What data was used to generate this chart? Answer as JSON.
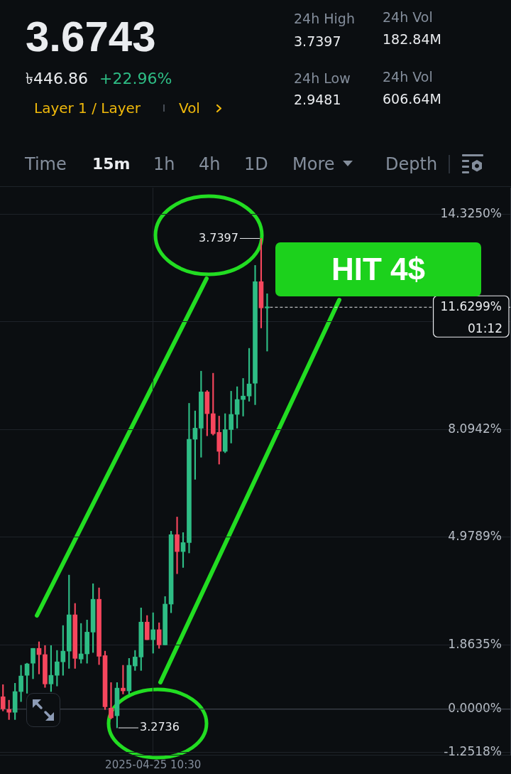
{
  "chart_data": {
    "type": "candlestick",
    "title": "3.6743",
    "categories": [
      null,
      null,
      null,
      null,
      null,
      null,
      null,
      null,
      null,
      null,
      null,
      null,
      null,
      null,
      null,
      null,
      null,
      null,
      null,
      null,
      null,
      null,
      null,
      null,
      null,
      "2025-04-25 10:30",
      null,
      null,
      null,
      null,
      null,
      null,
      null,
      null,
      null,
      null,
      null,
      null,
      null,
      null,
      null,
      null,
      null,
      null,
      null,
      null,
      null,
      null,
      null,
      null,
      null,
      null,
      null,
      null,
      null,
      null,
      null,
      null,
      null,
      null,
      null,
      null,
      null,
      null,
      null,
      null,
      null,
      null,
      null,
      null,
      null,
      null,
      null,
      null,
      null,
      null,
      null,
      null,
      null,
      null,
      null,
      null,
      null,
      null,
      null
    ],
    "ohlc": [
      [
        0.36,
        0.71,
        -0.05,
        0.01
      ],
      [
        -0.01,
        0.26,
        -0.3,
        -0.09
      ],
      [
        -0.09,
        0.75,
        -0.3,
        0.51
      ],
      [
        0.51,
        1.27,
        0.22,
        0.96
      ],
      [
        0.98,
        1.33,
        0.46,
        1.31
      ],
      [
        1.33,
        1.76,
        0.88,
        1.76
      ],
      [
        1.76,
        1.95,
        1.02,
        1.58
      ],
      [
        1.58,
        1.84,
        0.63,
        0.73
      ],
      [
        0.73,
        1.84,
        0.51,
        0.98
      ],
      [
        0.98,
        1.7,
        0.67,
        1.37
      ],
      [
        1.37,
        2.42,
        0.98,
        1.68
      ],
      [
        1.68,
        3.88,
        1.18,
        2.73
      ],
      [
        2.73,
        3.06,
        1.18,
        1.47
      ],
      [
        1.45,
        2.48,
        1.33,
        1.6
      ],
      [
        1.6,
        2.58,
        1.33,
        2.23
      ],
      [
        2.23,
        3.63,
        1.64,
        3.18
      ],
      [
        3.18,
        3.51,
        1.29,
        1.53
      ],
      [
        1.55,
        1.68,
        -0.01,
        0.07
      ],
      [
        0.03,
        0.77,
        -0.28,
        -0.25
      ],
      [
        -0.19,
        0.77,
        -0.54,
        0.61
      ],
      [
        0.61,
        1.27,
        0.44,
        0.53
      ],
      [
        0.53,
        1.47,
        0.44,
        1.27
      ],
      [
        1.25,
        1.7,
        1.12,
        1.51
      ],
      [
        1.51,
        2.93,
        1.12,
        2.52
      ],
      [
        2.52,
        2.71,
        2.01,
        2.01
      ],
      [
        2.01,
        2.79,
        1.62,
        2.3
      ],
      [
        2.3,
        2.5,
        1.76,
        1.86
      ],
      [
        1.86,
        3.26,
        1.86,
        3.04
      ],
      [
        3.04,
        5.15,
        2.79,
        5.05
      ],
      [
        5.05,
        5.56,
        3.92,
        4.56
      ],
      [
        4.56,
        5.11,
        4.1,
        4.82
      ],
      [
        4.82,
        8.85,
        4.52,
        7.81
      ],
      [
        7.81,
        8.63,
        6.65,
        8.13
      ],
      [
        8.13,
        9.78,
        7.29,
        9.18
      ],
      [
        9.18,
        9.22,
        7.91,
        8.55
      ],
      [
        8.55,
        9.72,
        7.93,
        7.97
      ],
      [
        8.01,
        8.48,
        7.09,
        7.46
      ],
      [
        7.46,
        8.55,
        7.42,
        8.09
      ],
      [
        8.09,
        9.2,
        7.7,
        8.53
      ],
      [
        8.53,
        9.33,
        8.13,
        8.96
      ],
      [
        8.96,
        9.57,
        8.48,
        9.06
      ],
      [
        9.06,
        10.44,
        8.91,
        9.41
      ],
      [
        9.43,
        12.84,
        8.81,
        12.37
      ],
      [
        12.37,
        13.62,
        11.03,
        11.61
      ],
      [
        11.61,
        12.02,
        10.36,
        11.63
      ],
      null,
      null,
      null,
      null,
      null,
      null,
      null,
      null,
      null,
      null,
      null,
      null,
      null,
      null,
      null,
      null,
      null,
      null,
      null,
      null,
      null,
      null,
      null,
      null,
      null,
      null,
      null,
      null,
      null,
      null,
      null,
      null,
      null,
      null,
      null,
      null,
      null,
      null,
      null,
      null
    ],
    "colors": [
      "#f6465d",
      "#f6465d",
      "#2ebd85",
      "#2ebd85",
      "#2ebd85",
      "#2ebd85",
      "#f6465d",
      "#f6465d",
      "#2ebd85",
      "#2ebd85",
      "#2ebd85",
      "#2ebd85",
      "#f6465d",
      "#2ebd85",
      "#2ebd85",
      "#2ebd85",
      "#f6465d",
      "#f6465d",
      "#f6465d",
      "#2ebd85",
      "#f6465d",
      "#2ebd85",
      "#2ebd85",
      "#2ebd85",
      "#f6465d",
      "#2ebd85",
      "#f6465d",
      "#2ebd85",
      "#2ebd85",
      "#f6465d",
      "#2ebd85",
      "#2ebd85",
      "#2ebd85",
      "#2ebd85",
      "#f6465d",
      "#f6465d",
      "#f6465d",
      "#2ebd85",
      "#2ebd85",
      "#2ebd85",
      "#2ebd85",
      "#2ebd85",
      "#2ebd85",
      "#f6465d",
      "#2ebd85",
      null,
      null,
      null,
      null,
      null,
      null,
      null,
      null,
      null,
      null,
      null,
      null,
      null,
      null,
      null,
      null,
      null,
      null,
      null,
      null,
      null,
      null,
      null,
      null,
      null,
      null,
      null,
      null,
      null,
      null,
      null,
      null,
      null,
      null,
      null,
      null,
      null,
      null,
      null,
      null
    ],
    "ylim": [
      -1.32,
      15.09
    ],
    "yticks": [
      {
        "value": -1.2518,
        "label": "-1.2518%"
      },
      {
        "value": 0,
        "label": "0.0000%"
      },
      {
        "value": 1.8635,
        "label": "1.8635%"
      },
      {
        "value": 4.9789,
        "label": "4.9789%"
      },
      {
        "value": 8.0942,
        "label": "8.0942%"
      },
      {
        "value": 11.2096,
        "label": null
      },
      {
        "value": 14.325,
        "label": "14.3250%"
      }
    ],
    "grid": true,
    "ref_lines": [
      {
        "axis": "y",
        "value": 0,
        "color": "#474d57"
      },
      {
        "axis": "y",
        "value": 11.6299,
        "label": "11.6299%",
        "line_style": "dashed",
        "color": "#eaecef"
      }
    ],
    "annotations": [
      "৳446.86",
      "+22.96%",
      "Layer 1 / Layer",
      "Vol",
      "24h High",
      "3.7397",
      "24h Vol",
      "182.84M",
      "24h Low",
      "2.9481",
      "24h Vol",
      "606.64M",
      "Time",
      "15m",
      "1h",
      "4h",
      "1D",
      "More",
      "Depth",
      "HIT 4$",
      "01:12",
      "3.7397",
      "3.2736"
    ]
  }
}
